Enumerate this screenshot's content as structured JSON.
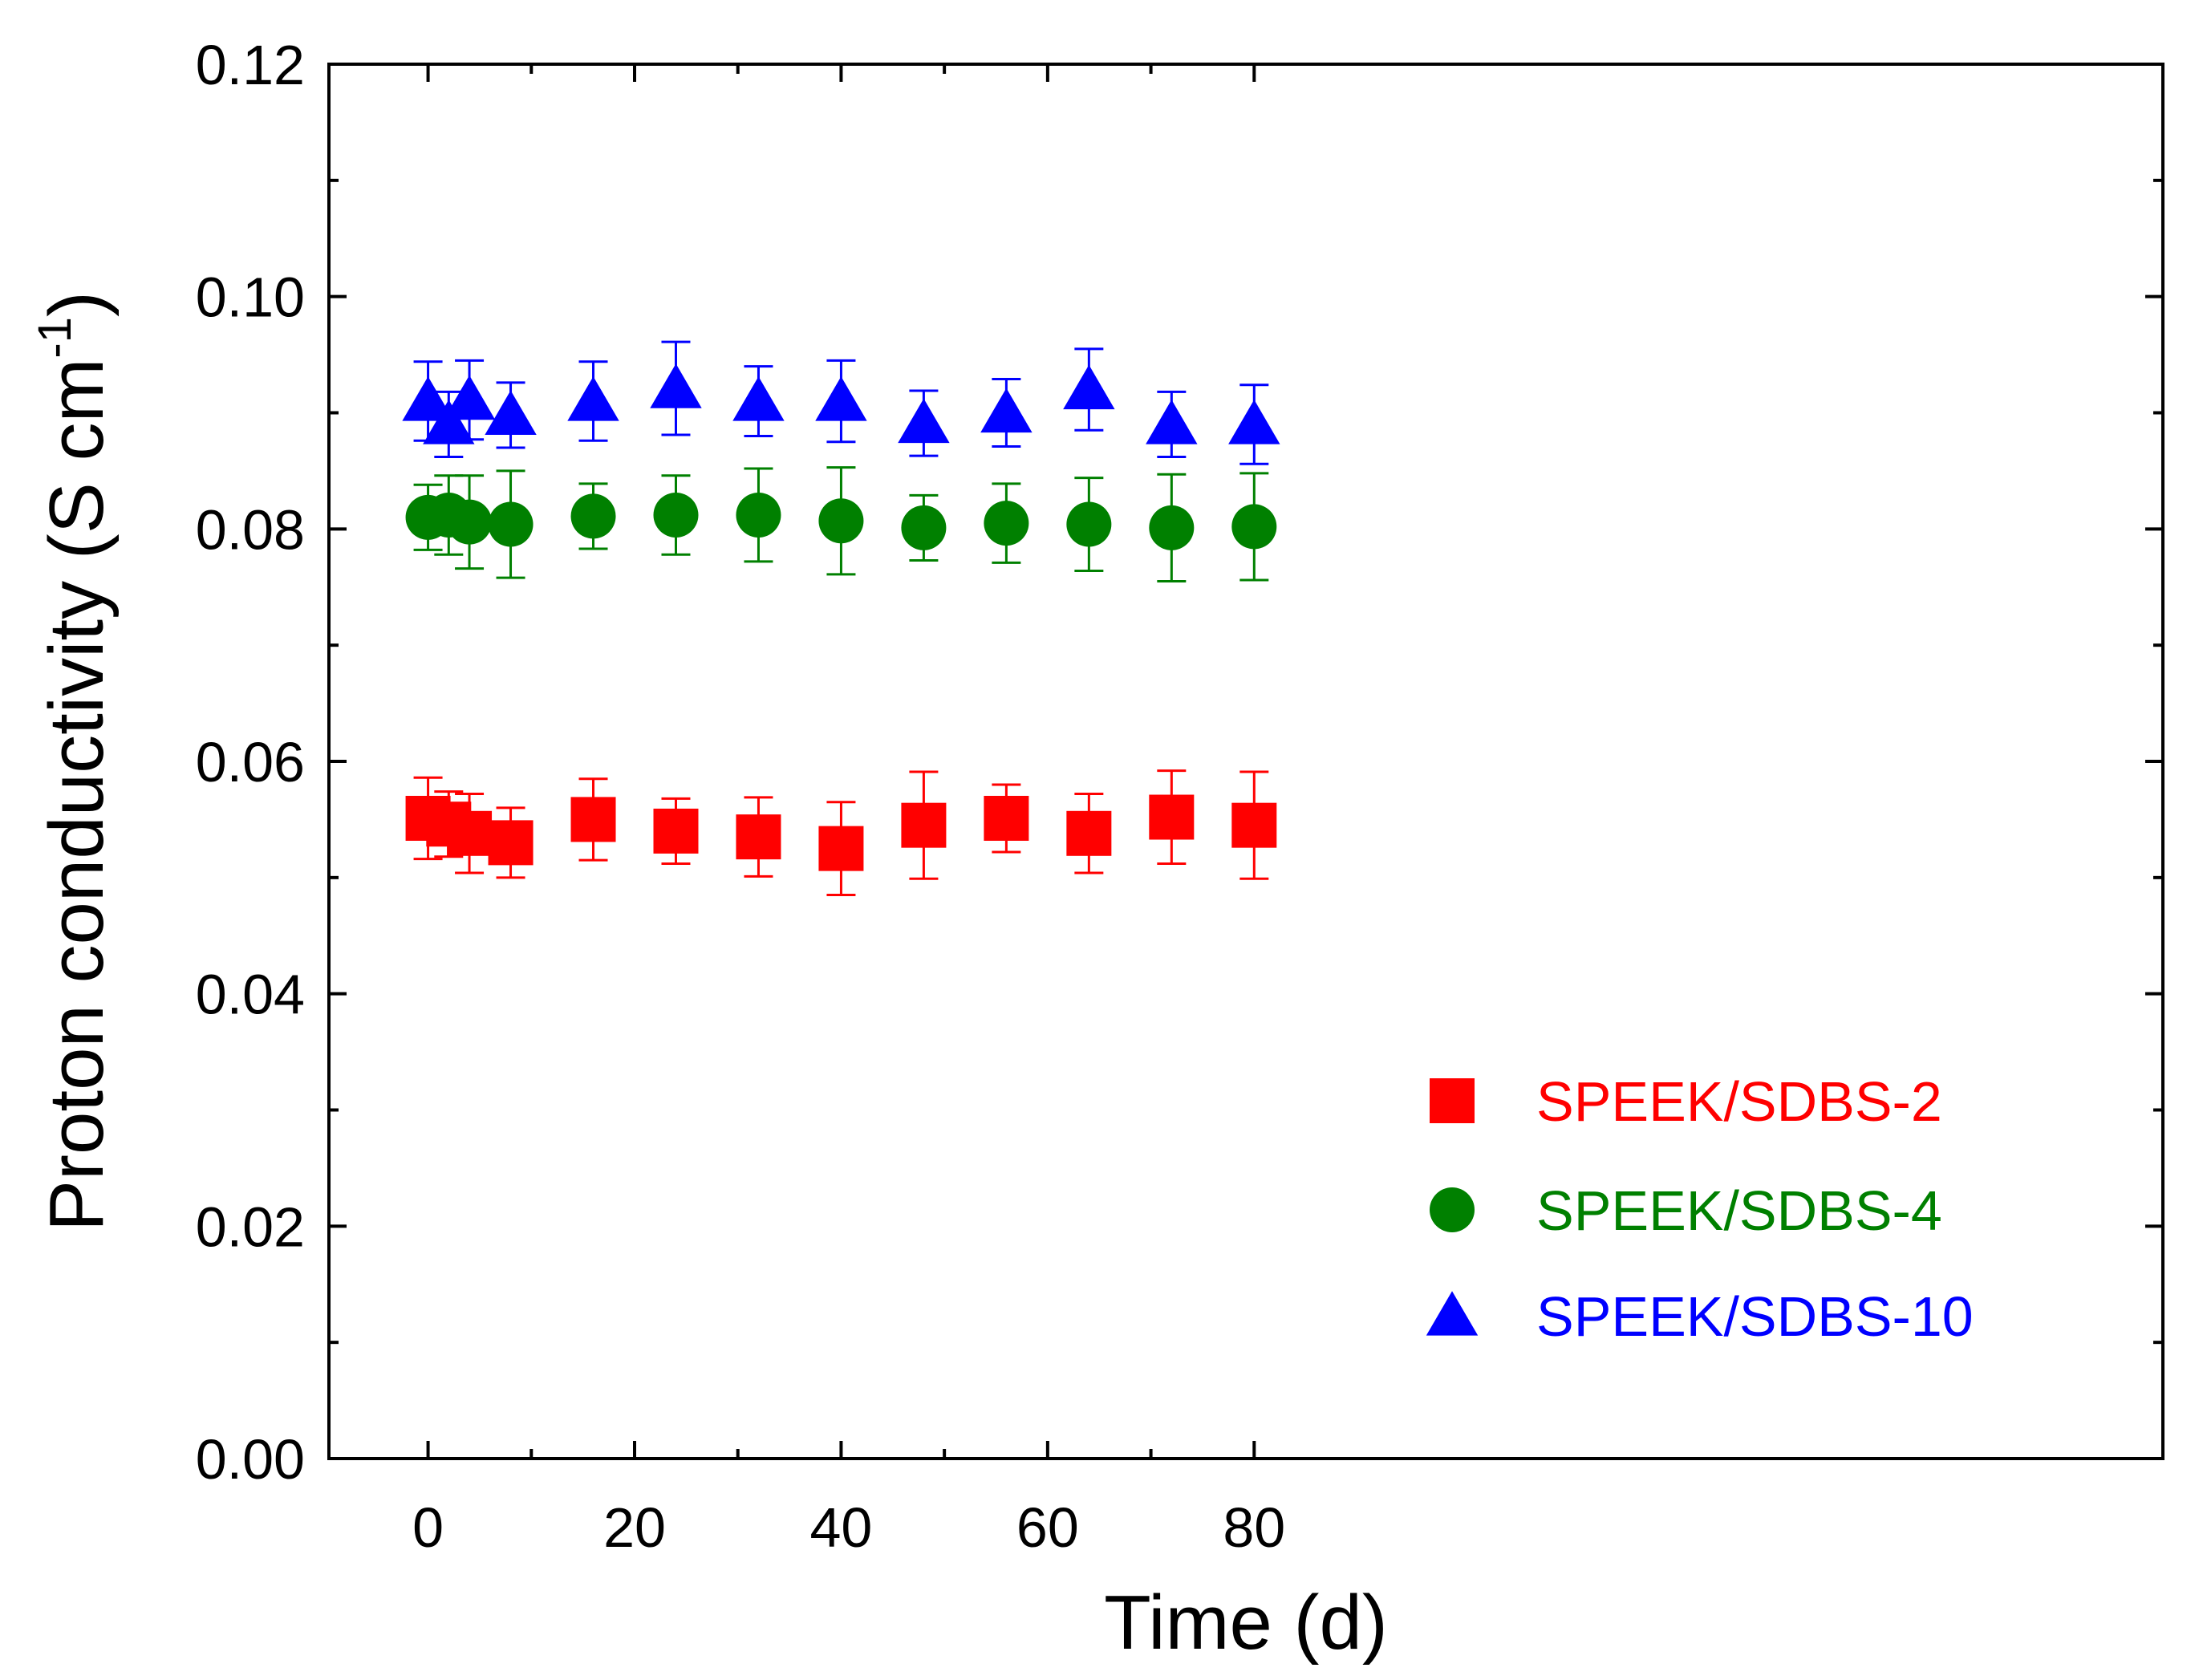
{
  "chart_data": {
    "type": "scatter",
    "title": "",
    "xlabel": "Time (d)",
    "ylabel": "Proton conductivity (S cm",
    "ylabel_superscript": "-1",
    "ylabel_close": ")",
    "xlim": [
      -9.6,
      168
    ],
    "ylim": [
      0,
      0.12
    ],
    "xticks": [
      0,
      20,
      40,
      60,
      80
    ],
    "xtick_labels": [
      "0",
      "20",
      "40",
      "60",
      "80"
    ],
    "yticks": [
      0.0,
      0.02,
      0.04,
      0.06,
      0.08,
      0.1,
      0.12
    ],
    "ytick_labels": [
      "0.00",
      "0.02",
      "0.04",
      "0.06",
      "0.08",
      "0.10",
      "0.12"
    ],
    "grid": false,
    "legend_position": "lower-right",
    "series": [
      {
        "name": "SPEEK/SDBS-2",
        "marker": "square",
        "color": "#ff0000",
        "x": [
          0,
          2,
          4,
          8,
          16,
          24,
          32,
          40,
          48,
          56,
          64,
          72,
          80
        ],
        "y": [
          0.0551,
          0.0546,
          0.0538,
          0.053,
          0.055,
          0.054,
          0.0535,
          0.0525,
          0.0545,
          0.0551,
          0.0538,
          0.0552,
          0.0545
        ],
        "err": [
          0.0035,
          0.0028,
          0.0034,
          0.003,
          0.0035,
          0.0028,
          0.0034,
          0.004,
          0.0046,
          0.0029,
          0.0034,
          0.004,
          0.0046
        ]
      },
      {
        "name": "SPEEK/SDBS-4",
        "marker": "circle",
        "color": "#008000",
        "x": [
          0,
          2,
          4,
          8,
          16,
          24,
          32,
          40,
          48,
          56,
          64,
          72,
          80
        ],
        "y": [
          0.081,
          0.0812,
          0.0806,
          0.0804,
          0.0811,
          0.0812,
          0.0812,
          0.0807,
          0.0801,
          0.0805,
          0.0804,
          0.0801,
          0.0802
        ],
        "err": [
          0.0028,
          0.0034,
          0.004,
          0.0046,
          0.0028,
          0.0034,
          0.004,
          0.0046,
          0.0028,
          0.0034,
          0.004,
          0.0046,
          0.0046
        ]
      },
      {
        "name": "SPEEK/SDBS-10",
        "marker": "triangle",
        "color": "#0000ff",
        "x": [
          0,
          2,
          4,
          8,
          16,
          24,
          32,
          40,
          48,
          56,
          64,
          72,
          80
        ],
        "y": [
          0.091,
          0.089,
          0.0911,
          0.0898,
          0.091,
          0.0921,
          0.091,
          0.091,
          0.0891,
          0.09,
          0.092,
          0.089,
          0.089
        ],
        "err": [
          0.0034,
          0.0028,
          0.0034,
          0.0028,
          0.0034,
          0.004,
          0.003,
          0.0035,
          0.0028,
          0.0029,
          0.0035,
          0.0028,
          0.0034
        ]
      }
    ]
  }
}
